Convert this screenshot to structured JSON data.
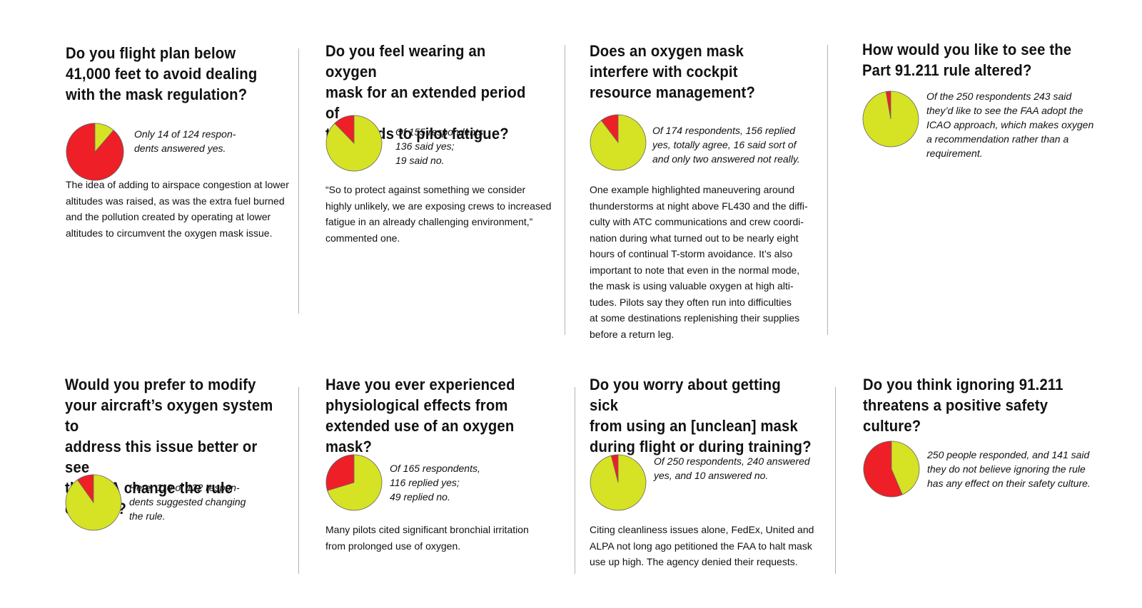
{
  "colors": {
    "yes": "#ee1f27",
    "no": "#d6e224",
    "outline": "#666666",
    "divider": "#b3b3b3"
  },
  "panels": [
    {
      "question": "Do you flight plan below\n41,000 feet to avoid dealing\nwith the mask regulation?",
      "stat": "Only 14 of 124 respon-\ndents answered yes.",
      "body": "The idea of adding to airspace congestion at lower\naltitudes was raised, as was the extra fuel burned\nand the pollution created by operating at lower\naltitudes to circumvent the oxygen mask issue."
    },
    {
      "question": "Do you feel wearing an oxygen\nmask for an extended period of\ntime adds to pilot fatigue?",
      "stat": "Of 155 respondents,\n136 said yes;\n19 said no.",
      "body": "“So to protect against something we consider\nhighly unlikely, we are exposing crews to increased\nfatigue in an already challenging environment,”\ncommented one."
    },
    {
      "question": "Does an oxygen mask\ninterfere with cockpit\nresource management?",
      "stat": "Of 174 respondents, 156 replied\nyes, totally agree, 16 said sort of\nand only two answered not really.",
      "body": "One example highlighted maneuvering around\nthunderstorms at night above FL430 and the diffi-\nculty with ATC communications and crew coordi-\nnation during what turned out to be nearly eight\nhours of continual T-storm avoidance. It’s also\nimportant to note that even in the normal mode,\nthe mask is using valuable oxygen at high alti-\ntudes. Pilots say they often run into difficulties\nat some destinations replenishing their supplies\nbefore a return leg."
    },
    {
      "question": "How would you like to see the\nPart 91.211 rule altered?",
      "stat": "Of the 250 respondents 243 said\nthey’d like to see the FAA adopt the\nICAO approach, which makes oxygen\na recommendation rather than a\nrequirement.",
      "body": ""
    },
    {
      "question": "Would you prefer to modify\nyour aircraft’s oxygen system to\naddress this issue better or see\nthe FAA change the rule entirely?",
      "stat": " Here, 110 of 122 respon-\ndents suggested changing\nthe rule.",
      "body": ""
    },
    {
      "question": "Have you ever experienced\nphysiological effects from\nextended use of an oxygen mask?",
      "stat": "Of 165 respondents,\n116 replied yes;\n49 replied no.",
      "body": "Many pilots cited significant bronchial irritation\nfrom prolonged use of oxygen."
    },
    {
      "question": "Do you worry about getting sick\nfrom using an [unclean] mask\nduring flight or during training?",
      "stat": "Of 250 respondents, 240 answered\nyes, and 10 answered no.",
      "body": "Citing cleanliness issues alone, FedEx, United and\nALPA not long ago petitioned the FAA to halt mask\nuse up high. The agency denied their requests."
    },
    {
      "question": "Do you think ignoring 91.211\nthreatens a positive safety culture?",
      "stat": "250 people responded, and 141 said\nthey do not believe ignoring the rule\nhas any effect on their safety culture.",
      "body": ""
    }
  ],
  "chart_data": [
    {
      "type": "pie",
      "slices": [
        {
          "label": "red",
          "value": 110
        },
        {
          "label": "yellow",
          "value": 14
        }
      ]
    },
    {
      "type": "pie",
      "slices": [
        {
          "label": "red",
          "value": 19
        },
        {
          "label": "yellow",
          "value": 136
        }
      ]
    },
    {
      "type": "pie",
      "slices": [
        {
          "label": "red",
          "value": 18
        },
        {
          "label": "yellow",
          "value": 156
        }
      ]
    },
    {
      "type": "pie",
      "slices": [
        {
          "label": "red",
          "value": 7
        },
        {
          "label": "yellow",
          "value": 243
        }
      ]
    },
    {
      "type": "pie",
      "slices": [
        {
          "label": "red",
          "value": 12
        },
        {
          "label": "yellow",
          "value": 110
        }
      ]
    },
    {
      "type": "pie",
      "slices": [
        {
          "label": "red",
          "value": 49
        },
        {
          "label": "yellow",
          "value": 116
        }
      ]
    },
    {
      "type": "pie",
      "slices": [
        {
          "label": "red",
          "value": 10
        },
        {
          "label": "yellow",
          "value": 240
        }
      ]
    },
    {
      "type": "pie",
      "slices": [
        {
          "label": "red",
          "value": 141
        },
        {
          "label": "yellow",
          "value": 109
        }
      ]
    }
  ]
}
